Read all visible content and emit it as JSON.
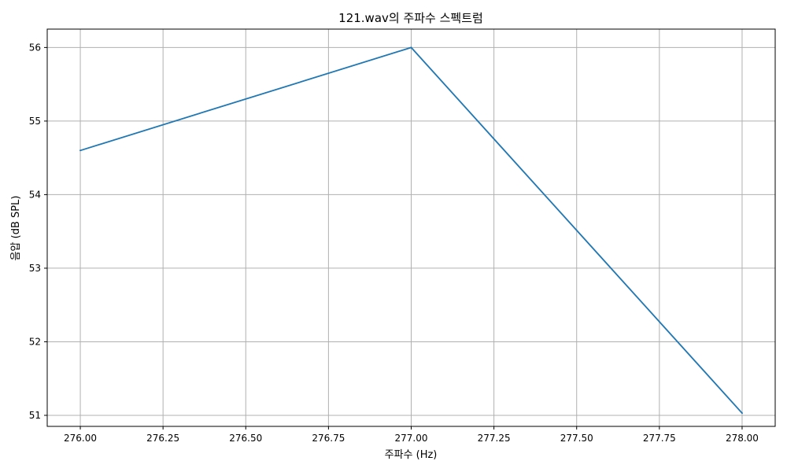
{
  "chart_data": {
    "type": "line",
    "title": "121.wav의 주파수 스펙트럼",
    "xlabel": "주파수 (Hz)",
    "ylabel": "음압 (dB SPL)",
    "xlim": [
      275.9,
      278.1
    ],
    "ylim": [
      50.85,
      56.25
    ],
    "xticks": [
      276.0,
      276.25,
      276.5,
      276.75,
      277.0,
      277.25,
      277.5,
      277.75,
      278.0
    ],
    "xtick_labels": [
      "276.00",
      "276.25",
      "276.50",
      "276.75",
      "277.00",
      "277.25",
      "277.50",
      "277.75",
      "278.00"
    ],
    "yticks": [
      51,
      52,
      53,
      54,
      55,
      56
    ],
    "ytick_labels": [
      "51",
      "52",
      "53",
      "54",
      "55",
      "56"
    ],
    "grid": true,
    "series": [
      {
        "x": [
          276.0,
          277.0,
          278.0
        ],
        "y": [
          54.6,
          56.0,
          51.03
        ],
        "color": "#1f77b4"
      }
    ]
  }
}
